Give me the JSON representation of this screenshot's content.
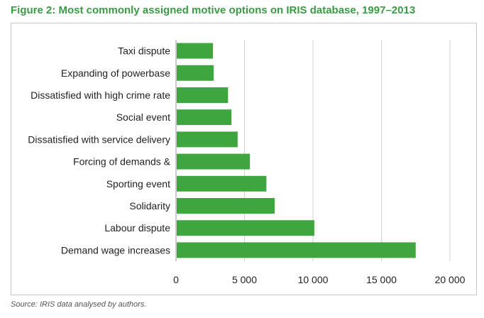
{
  "figure": {
    "title": "Figure 2: Most commonly assigned motive options on IRIS database, 1997–2013",
    "source": "Source: IRIS data analysed by authors."
  },
  "colors": {
    "bar": "#3fa63f",
    "title": "#3a9b45",
    "grid": "#d2d2d2",
    "frame": "#c6c6c6"
  },
  "chart_data": {
    "type": "bar",
    "orientation": "horizontal",
    "categories": [
      "Taxi dispute",
      "Expanding of powerbase",
      "Dissatisfied with high crime rate",
      "Social event",
      "Dissatisfied with service delivery",
      "Forcing of demands &",
      "Sporting event",
      "Solidarity",
      "Labour dispute",
      "Demand wage increases"
    ],
    "values": [
      2700,
      2750,
      3800,
      4050,
      4500,
      5400,
      6600,
      7200,
      10100,
      17500
    ],
    "xlim": [
      0,
      20000
    ],
    "xticks": [
      0,
      5000,
      10000,
      15000,
      20000
    ],
    "xtick_labels": [
      "0",
      "5 000",
      "10 000",
      "15 000",
      "20 000"
    ],
    "grid": "vertical",
    "legend": "none"
  }
}
